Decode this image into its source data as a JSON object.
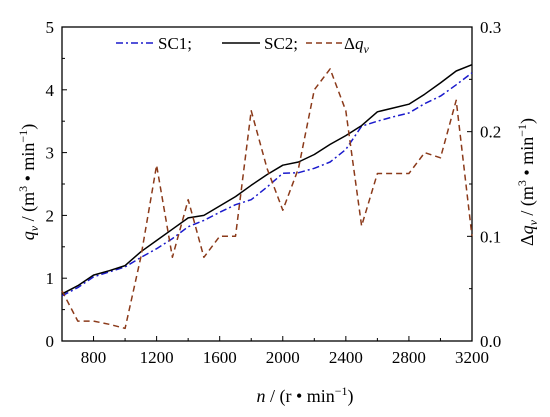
{
  "chart_data": {
    "type": "line",
    "x": [
      600,
      700,
      800,
      900,
      1000,
      1100,
      1200,
      1300,
      1400,
      1500,
      1600,
      1700,
      1800,
      1900,
      2000,
      2100,
      2200,
      2300,
      2400,
      2500,
      2600,
      2700,
      2800,
      2900,
      3000,
      3100,
      3200
    ],
    "series": [
      {
        "name": "SC1;",
        "axis": "left",
        "color": "#1a1acc",
        "style": "dash-dot",
        "values": [
          0.72,
          0.85,
          1.02,
          1.1,
          1.18,
          1.33,
          1.47,
          1.63,
          1.82,
          1.92,
          2.05,
          2.17,
          2.25,
          2.45,
          2.67,
          2.68,
          2.75,
          2.85,
          3.05,
          3.42,
          3.5,
          3.57,
          3.63,
          3.78,
          3.9,
          4.08,
          4.27
        ]
      },
      {
        "name": "SC2;",
        "axis": "left",
        "color": "#000000",
        "style": "solid",
        "values": [
          0.75,
          0.88,
          1.05,
          1.12,
          1.2,
          1.42,
          1.6,
          1.78,
          1.96,
          2.0,
          2.15,
          2.3,
          2.48,
          2.65,
          2.8,
          2.85,
          2.97,
          3.13,
          3.27,
          3.43,
          3.65,
          3.71,
          3.77,
          3.93,
          4.11,
          4.3,
          4.4
        ]
      },
      {
        "name": "Δq",
        "name_sub": "v",
        "axis": "right",
        "color": "#8b3a1a",
        "style": "dash",
        "values": [
          0.048,
          0.019,
          0.019,
          0.016,
          0.012,
          0.08,
          0.168,
          0.08,
          0.135,
          0.08,
          0.1,
          0.1,
          0.22,
          0.165,
          0.125,
          0.165,
          0.24,
          0.26,
          0.22,
          0.11,
          0.16,
          0.16,
          0.16,
          0.18,
          0.175,
          0.23,
          0.1
        ]
      }
    ],
    "xlim": [
      600,
      3200
    ],
    "ylim": [
      0,
      5
    ],
    "y2lim": [
      0,
      0.3
    ],
    "x_ticks": [
      800,
      1200,
      1600,
      2000,
      2400,
      2800,
      3200
    ],
    "y_ticks": [
      0,
      1,
      2,
      3,
      4,
      5
    ],
    "y2_ticks": [
      "0.0",
      "0.1",
      "0.2",
      "0.3"
    ],
    "xlabel": {
      "var": "n",
      "rest": " / (r • min",
      "sup": "−1",
      "close": ")"
    },
    "ylabel": {
      "var": "q",
      "sub": "v",
      "rest": " / (m",
      "sup1": "3",
      "mid": " • min",
      "sup2": "−1",
      "close": ")"
    },
    "y2label": {
      "pre": "Δ",
      "var": "q",
      "sub": "v",
      "rest": " / (m",
      "sup1": "3",
      "mid": " • min",
      "sup2": "−1",
      "close": ")"
    },
    "legend_position": "top-center",
    "grid": false
  }
}
